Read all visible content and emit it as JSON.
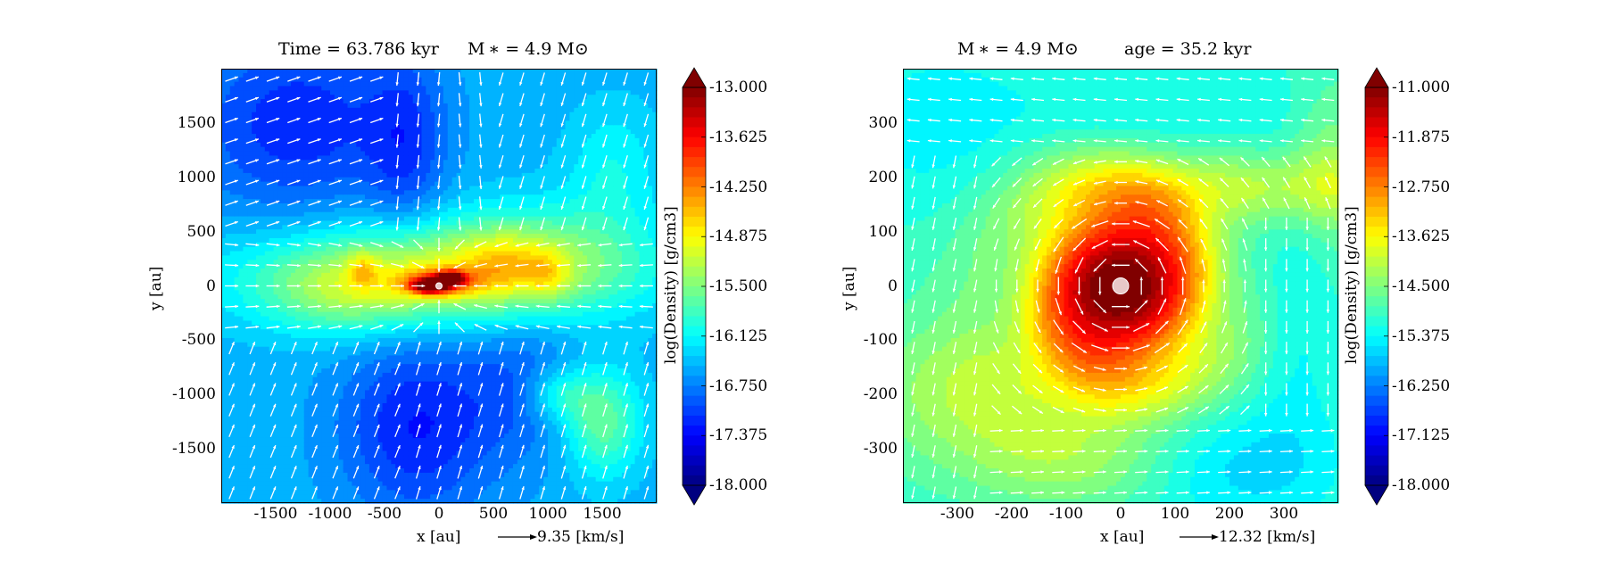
{
  "chart_data": [
    {
      "type": "heatmap",
      "title_left": "Time = 63.786 kyr",
      "title_right": "M ∗ = 4.9 M⊙",
      "xlabel": "x [au]",
      "ylabel": "y [au]",
      "xticks": [
        "-1500",
        "-1000",
        "-500",
        "0",
        "500",
        "1000",
        "1500"
      ],
      "xtick_values": [
        -1500,
        -1000,
        -500,
        0,
        500,
        1000,
        1500
      ],
      "yticks": [
        "1500",
        "1000",
        "500",
        "0",
        "-500",
        "-1000",
        "-1500"
      ],
      "ytick_values": [
        1500,
        1000,
        500,
        0,
        -500,
        -1000,
        -1500
      ],
      "xlim": [
        -2000,
        2000
      ],
      "ylim": [
        -2000,
        2000
      ],
      "colorbar_label": "log(Density) [g/cm3]",
      "colorbar_ticks": [
        "-13.000",
        "-13.625",
        "-14.250",
        "-14.875",
        "-15.500",
        "-16.125",
        "-16.750",
        "-17.375",
        "-18.000"
      ],
      "colorbar_range": [
        -18.0,
        -13.0
      ],
      "colormap": "jet",
      "vector_key": "9.35 [km/s]",
      "vector_color": "#ffffff",
      "sink_marker": true
    },
    {
      "type": "heatmap",
      "title_left": "M ∗ = 4.9 M⊙",
      "title_right": "age = 35.2 kyr",
      "xlabel": "x [au]",
      "ylabel": "y [au]",
      "xticks": [
        "-300",
        "-200",
        "-100",
        "0",
        "100",
        "200",
        "300"
      ],
      "xtick_values": [
        -300,
        -200,
        -100,
        0,
        100,
        200,
        300
      ],
      "yticks": [
        "300",
        "200",
        "100",
        "0",
        "-100",
        "-200",
        "-300"
      ],
      "ytick_values": [
        300,
        200,
        100,
        0,
        -100,
        -200,
        -300
      ],
      "xlim": [
        -400,
        400
      ],
      "ylim": [
        -400,
        400
      ],
      "colorbar_label": "log(Density) [g/cm3]",
      "colorbar_ticks": [
        "-11.000",
        "-11.875",
        "-12.750",
        "-13.625",
        "-14.500",
        "-15.375",
        "-16.250",
        "-17.125",
        "-18.000"
      ],
      "colorbar_range": [
        -18.0,
        -11.0
      ],
      "colormap": "jet",
      "vector_key": "12.32 [km/s]",
      "vector_color": "#ffffff",
      "sink_marker": true
    }
  ]
}
